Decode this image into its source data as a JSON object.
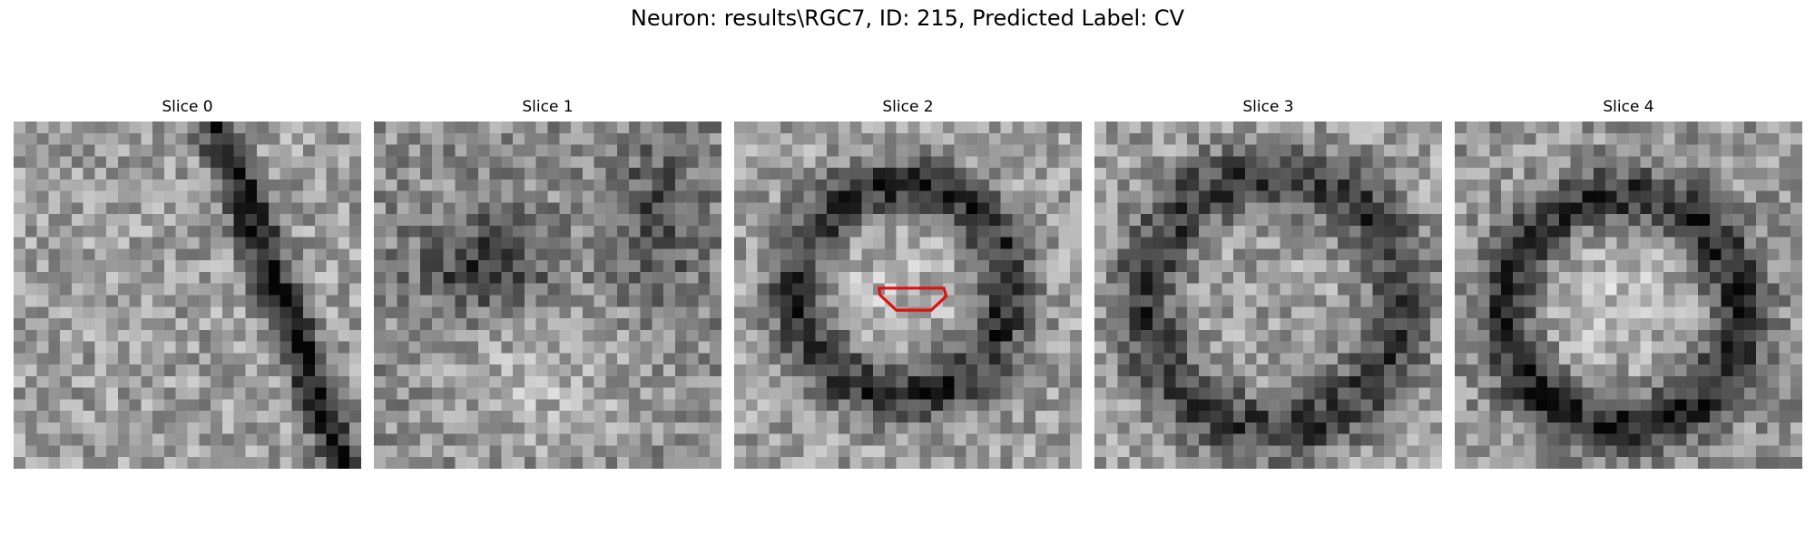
{
  "figure": {
    "title": "Neuron: results\\RGC7, ID: 215, Predicted Label: CV"
  },
  "slices": [
    {
      "label": "Slice 0",
      "image": "grayscale-microscopy-slice",
      "has_roi": false
    },
    {
      "label": "Slice 1",
      "image": "grayscale-microscopy-slice",
      "has_roi": false
    },
    {
      "label": "Slice 2",
      "image": "grayscale-microscopy-slice",
      "has_roi": true,
      "roi_color": "#e01010"
    },
    {
      "label": "Slice 3",
      "image": "grayscale-microscopy-slice",
      "has_roi": false
    },
    {
      "label": "Slice 4",
      "image": "grayscale-microscopy-slice",
      "has_roi": false
    }
  ]
}
